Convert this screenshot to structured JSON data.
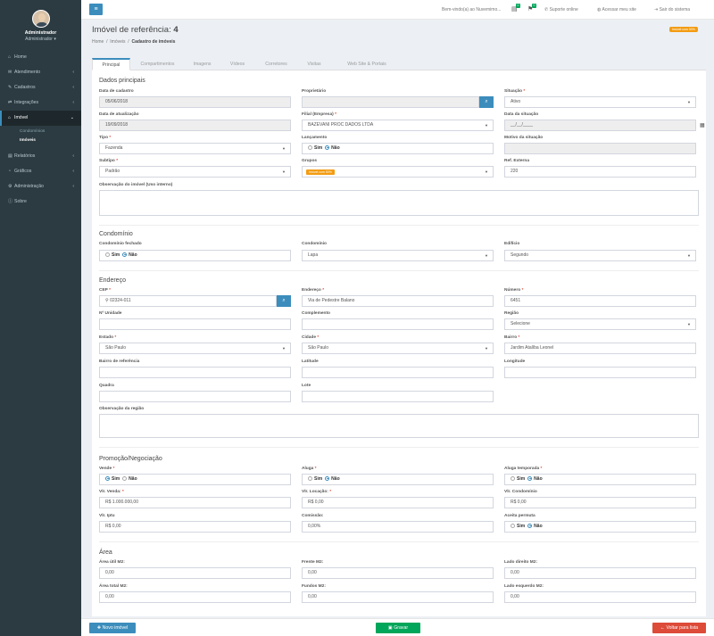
{
  "sidebar": {
    "user_name": "Administrador",
    "user_role": "Administrador",
    "items": [
      {
        "icon": "home-icon",
        "glyph": "⌂",
        "label": "Home"
      },
      {
        "icon": "chat-icon",
        "glyph": "✉",
        "label": "Atendimento"
      },
      {
        "icon": "wrench-icon",
        "glyph": "✎",
        "label": "Cadastros"
      },
      {
        "icon": "integration-icon",
        "glyph": "⇄",
        "label": "Integrações"
      },
      {
        "icon": "house-icon",
        "glyph": "⌂",
        "label": "Imóvel"
      },
      {
        "icon": "report-icon",
        "glyph": "▤",
        "label": "Relatórios"
      },
      {
        "icon": "chart-icon",
        "glyph": "◔",
        "label": "Gráficos"
      },
      {
        "icon": "admin-gear-icon",
        "glyph": "⚙",
        "label": "Administração"
      },
      {
        "icon": "info-icon",
        "glyph": "ⓘ",
        "label": "Sobre"
      }
    ],
    "submenu": [
      "Condomínios",
      "Imóveis"
    ]
  },
  "topbar": {
    "welcome": "Bem-vindo(a) ao Nuvemimo...",
    "badge1": "0",
    "badge2": "0",
    "support": "Suporte online",
    "site": "Acessar meu site",
    "logout": "Sair do sistema"
  },
  "page": {
    "title_prefix": "Imóvel de referência:",
    "title_ref": "4",
    "crumb1": "Home",
    "crumb2": "Imóveis",
    "crumb3": "Cadastro de imóveis",
    "status_pill": "Imóvel com 50%"
  },
  "tabs": [
    "Principal",
    "Compartimentos",
    "Imagens",
    "Vídeos",
    "Corretores",
    "Visitas",
    "Web Site & Portais"
  ],
  "dados": {
    "title": "Dados principais",
    "data_cadastro_lbl": "Data de cadastro",
    "data_cadastro": "05/06/2018",
    "proprietario_lbl": "Proprietário",
    "proprietario": "",
    "situacao_lbl": "Situação",
    "situacao": "Ativo",
    "data_atual_lbl": "Data de atualização",
    "data_atual": "19/09/2018",
    "filial_lbl": "Filial (Empresa)",
    "filial": "BAZEVANI PROC DADOS LTDA",
    "data_sit_lbl": "Data da situação",
    "data_sit": "__/__/____",
    "tipo_lbl": "Tipo",
    "tipo": "Fazenda",
    "lancamento_lbl": "Lançamento",
    "sim": "Sim",
    "nao": "Não",
    "motivo_lbl": "Motivo da situação",
    "motivo": "",
    "subtipo_lbl": "Subtipo",
    "subtipo": "Padrão",
    "grupos_lbl": "Grupos",
    "grupos_tag": "Imóvel com 50%",
    "ref_lbl": "Ref. Externa",
    "ref": "220",
    "obs_lbl": "Observação do imóvel (Uso interno)"
  },
  "condominio": {
    "title": "Condomínio",
    "fechado_lbl": "Condomínio fechado",
    "cond_lbl": "Condomínio",
    "cond": "Lapa",
    "edif_lbl": "Edifício",
    "edif": "Segundo"
  },
  "endereco": {
    "title": "Endereço",
    "cep_lbl": "CEP",
    "cep": "02324-011",
    "end_lbl": "Endereço",
    "end": "Via de Pedestre Balano",
    "num_lbl": "Número",
    "num": "6451",
    "unid_lbl": "Nº Unidade",
    "comp_lbl": "Complemento",
    "regiao_lbl": "Região",
    "regiao": "Selecione",
    "estado_lbl": "Estado",
    "estado": "São Paulo",
    "cidade_lbl": "Cidade",
    "cidade": "São Paulo",
    "bairro_lbl": "Bairro",
    "bairro": "Jardim Atalíba Leonel",
    "bref_lbl": "Bairro de referência",
    "lat_lbl": "Latitude",
    "long_lbl": "Longitude",
    "quadra_lbl": "Quadra",
    "lote_lbl": "Lote",
    "obsreg_lbl": "Observação da região"
  },
  "promo": {
    "title": "Promoção/Negociação",
    "venda_lbl": "Vende",
    "aluga_lbl": "Aluga",
    "temp_lbl": "Aluga temporada",
    "vlr_venda_lbl": "Vlr. Venda:",
    "vlr_venda": "R$ 1.000.000,00",
    "vlr_loc_lbl": "Vlr. Locação:",
    "vlr_loc": "R$ 0,00",
    "vlr_cond_lbl": "Vlr. Condomínio",
    "vlr_cond": "R$ 0,00",
    "iptu_lbl": "Vlr. Iptu",
    "iptu": "R$ 0,00",
    "comissao_lbl": "Comissão:",
    "comissao": "0,00%",
    "permuta_lbl": "Aceita permuta"
  },
  "area": {
    "title": "Área",
    "util_lbl": "Área útil M2:",
    "util": "0,00",
    "frente_lbl": "Frente M2:",
    "frente": "0,00",
    "ldir_lbl": "Lado direito M2:",
    "ldir": "0,00",
    "total_lbl": "Área total M2:",
    "total": "0,00",
    "fundos_lbl": "Fundos M2:",
    "fundos": "0,00",
    "lesq_lbl": "Lado esquerdo M2:",
    "lesq": "0,00"
  },
  "footer": {
    "novo": "Novo imóvel",
    "gravar": "Gravar",
    "voltar": "Voltar para lista"
  }
}
